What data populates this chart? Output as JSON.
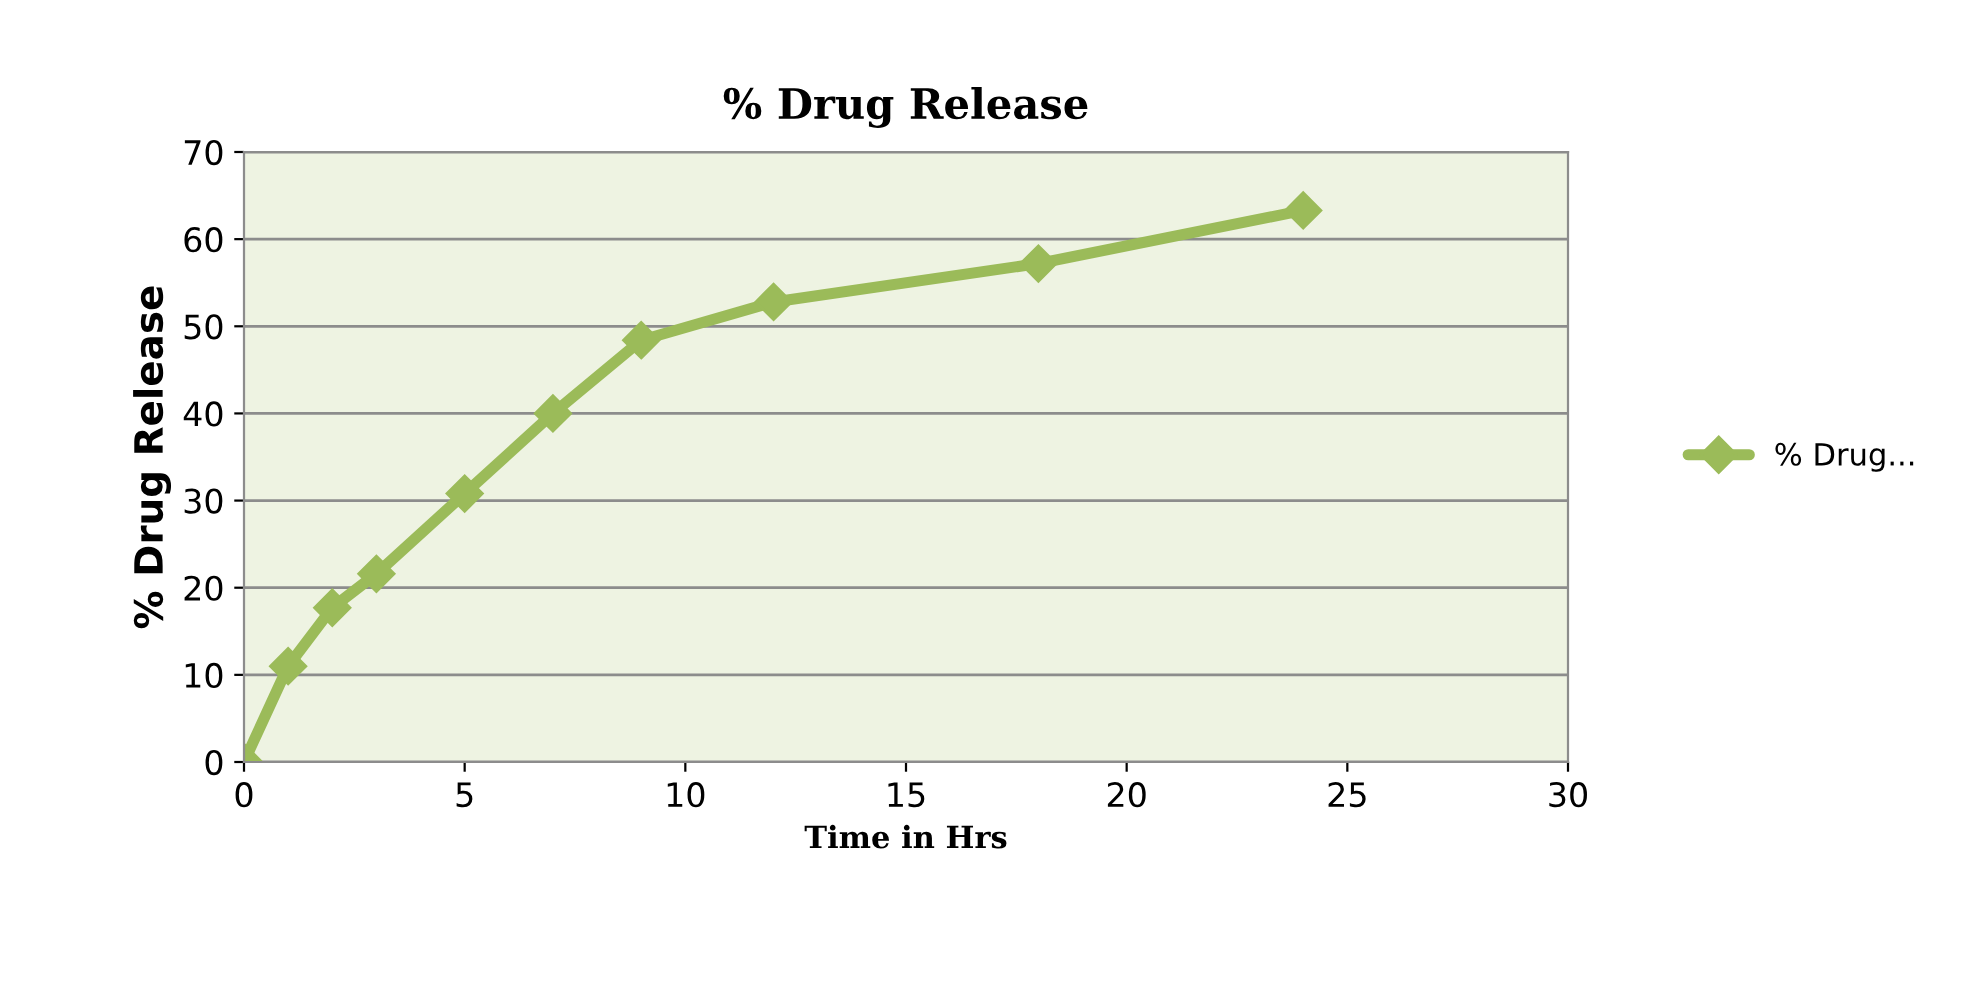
{
  "chart_data": {
    "type": "line",
    "title": "% Drug Release",
    "xlabel": "Time in Hrs",
    "ylabel": "% Drug Release",
    "x": [
      0,
      1,
      2,
      3,
      5,
      7,
      9,
      12,
      18,
      24
    ],
    "series": [
      {
        "name": "% Drug...",
        "color": "#9bbb59",
        "values": [
          0,
          11,
          17.7,
          21.6,
          30.8,
          40,
          48.4,
          52.8,
          57.2,
          63.3
        ]
      }
    ],
    "xlim": [
      0,
      30
    ],
    "xticks": [
      0,
      5,
      10,
      15,
      20,
      25,
      30
    ],
    "ylim": [
      0,
      70
    ],
    "yticks": [
      0,
      10,
      20,
      30,
      40,
      50,
      60,
      70
    ],
    "grid": "y",
    "legend": "right",
    "marker": "diamond",
    "line_style": "solid"
  }
}
